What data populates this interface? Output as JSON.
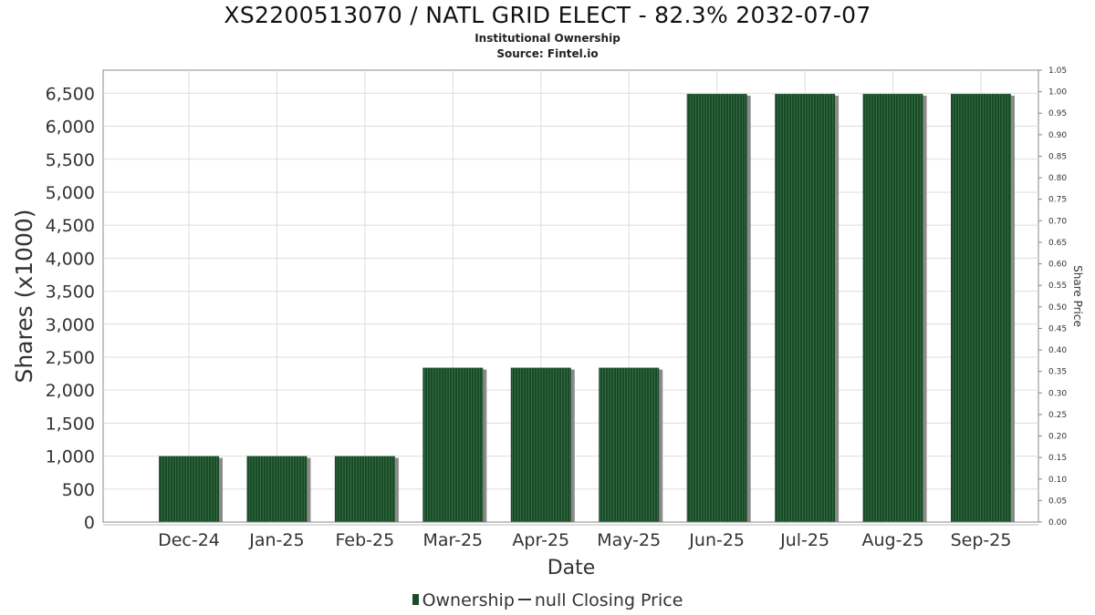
{
  "chart_data": {
    "type": "bar",
    "title": "XS2200513070 / NATL GRID ELECT - 82.3% 2032-07-07",
    "subtitle": "Institutional Ownership",
    "source": "Source: Fintel.io",
    "xlabel": "Date",
    "ylabel": "Shares (x1000)",
    "y2label": "Share Price",
    "categories": [
      "Dec-24",
      "Jan-25",
      "Feb-25",
      "Mar-25",
      "Apr-25",
      "May-25",
      "Jun-25",
      "Jul-25",
      "Aug-25",
      "Sep-25"
    ],
    "series": [
      {
        "name": "Ownership",
        "values": [
          1000,
          1000,
          1000,
          2340,
          2340,
          2340,
          6490,
          6490,
          6490,
          6490
        ]
      }
    ],
    "ylim": [
      0,
      6850
    ],
    "yticks": [
      0,
      500,
      1000,
      1500,
      2000,
      2500,
      3000,
      3500,
      4000,
      4500,
      5000,
      5500,
      6000,
      6500
    ],
    "ytick_labels": [
      "0",
      "500",
      "1,000",
      "1,500",
      "2,000",
      "2,500",
      "3,000",
      "3,500",
      "4,000",
      "4,500",
      "5,000",
      "5,500",
      "6,000",
      "6,500"
    ],
    "y2lim": [
      0,
      1.05
    ],
    "y2ticks": [
      "0.00",
      "0.05",
      "0.10",
      "0.15",
      "0.20",
      "0.25",
      "0.30",
      "0.35",
      "0.40",
      "0.45",
      "0.50",
      "0.55",
      "0.60",
      "0.65",
      "0.70",
      "0.75",
      "0.80",
      "0.85",
      "0.90",
      "0.95",
      "1.00",
      "1.05"
    ],
    "legend": [
      {
        "label": "Ownership",
        "marker": "bar"
      },
      {
        "label": "null Closing Price",
        "marker": "line"
      }
    ],
    "legend_position": "bottom",
    "grid": true,
    "colors": {
      "bar": "#1b4a2a",
      "bar_stripe": "#2f6b3c",
      "shadow": "#8a8a8a",
      "grid": "#dddddd",
      "axis": "#888888"
    }
  }
}
